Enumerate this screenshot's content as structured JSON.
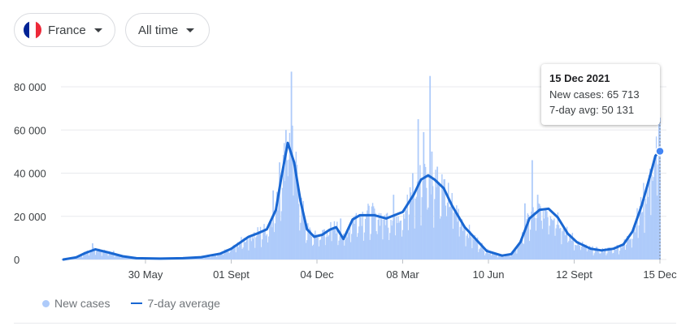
{
  "filters": {
    "country": {
      "label": "France",
      "flag_colors": [
        "#002395",
        "#ffffff",
        "#ed2939"
      ]
    },
    "range": {
      "label": "All time"
    }
  },
  "tooltip": {
    "date": "15 Dec 2021",
    "new_cases": "New cases: 65 713",
    "avg": "7-day avg: 50 131"
  },
  "legend": {
    "bars": "New cases",
    "line": "7-day average"
  },
  "colors": {
    "bar": "#aecbfa",
    "line": "#1967d2",
    "grid": "#e8eaed"
  },
  "chart_data": {
    "type": "bar",
    "title": "",
    "xlabel": "",
    "ylabel": "",
    "x_start": "2020-03-01",
    "x_end": "2021-12-15",
    "ylim": [
      0,
      85000
    ],
    "yticks": [
      {
        "value": 0,
        "label": "0"
      },
      {
        "value": 20000,
        "label": "20 000"
      },
      {
        "value": 40000,
        "label": "40 000"
      },
      {
        "value": 60000,
        "label": "60 000"
      },
      {
        "value": 80000,
        "label": "80 000"
      }
    ],
    "xticks": [
      {
        "date": "2020-05-30",
        "label": "30 May"
      },
      {
        "date": "2020-09-01",
        "label": "01 Sept"
      },
      {
        "date": "2020-12-04",
        "label": "04 Dec"
      },
      {
        "date": "2021-03-08",
        "label": "08 Mar"
      },
      {
        "date": "2021-06-10",
        "label": "10 Jun"
      },
      {
        "date": "2021-09-12",
        "label": "12 Sept"
      },
      {
        "date": "2021-12-15",
        "label": "15 Dec"
      }
    ],
    "series": [
      {
        "name": "7-day average",
        "points": [
          [
            "2020-03-01",
            0
          ],
          [
            "2020-03-15",
            1000
          ],
          [
            "2020-03-25",
            3000
          ],
          [
            "2020-04-05",
            4700
          ],
          [
            "2020-04-20",
            3200
          ],
          [
            "2020-05-05",
            1500
          ],
          [
            "2020-05-20",
            600
          ],
          [
            "2020-06-15",
            400
          ],
          [
            "2020-07-10",
            600
          ],
          [
            "2020-07-30",
            1100
          ],
          [
            "2020-08-20",
            2700
          ],
          [
            "2020-09-01",
            5000
          ],
          [
            "2020-09-20",
            10500
          ],
          [
            "2020-10-01",
            12300
          ],
          [
            "2020-10-10",
            14000
          ],
          [
            "2020-10-20",
            23000
          ],
          [
            "2020-10-26",
            38000
          ],
          [
            "2020-11-02",
            54000
          ],
          [
            "2020-11-09",
            45000
          ],
          [
            "2020-11-16",
            27000
          ],
          [
            "2020-11-23",
            14000
          ],
          [
            "2020-12-01",
            10500
          ],
          [
            "2020-12-10",
            11500
          ],
          [
            "2020-12-18",
            13800
          ],
          [
            "2020-12-25",
            15000
          ],
          [
            "2021-01-02",
            9500
          ],
          [
            "2021-01-12",
            18500
          ],
          [
            "2021-01-20",
            20500
          ],
          [
            "2021-02-05",
            20500
          ],
          [
            "2021-02-18",
            19000
          ],
          [
            "2021-03-08",
            22000
          ],
          [
            "2021-03-20",
            30000
          ],
          [
            "2021-03-28",
            37000
          ],
          [
            "2021-04-05",
            39000
          ],
          [
            "2021-04-12",
            37000
          ],
          [
            "2021-04-22",
            33000
          ],
          [
            "2021-05-01",
            25000
          ],
          [
            "2021-05-15",
            15000
          ],
          [
            "2021-05-28",
            9000
          ],
          [
            "2021-06-08",
            4000
          ],
          [
            "2021-06-25",
            1800
          ],
          [
            "2021-07-05",
            2500
          ],
          [
            "2021-07-15",
            8000
          ],
          [
            "2021-07-25",
            19000
          ],
          [
            "2021-08-05",
            23000
          ],
          [
            "2021-08-15",
            23500
          ],
          [
            "2021-08-25",
            19500
          ],
          [
            "2021-09-05",
            12000
          ],
          [
            "2021-09-15",
            8000
          ],
          [
            "2021-09-30",
            5000
          ],
          [
            "2021-10-12",
            4200
          ],
          [
            "2021-10-25",
            5000
          ],
          [
            "2021-11-05",
            7000
          ],
          [
            "2021-11-15",
            13000
          ],
          [
            "2021-11-25",
            25000
          ],
          [
            "2021-12-05",
            40000
          ],
          [
            "2021-12-10",
            48000
          ],
          [
            "2021-12-15",
            50131
          ]
        ]
      },
      {
        "name": "New cases",
        "spikes": [
          [
            "2020-04-02",
            7500
          ],
          [
            "2020-04-25",
            4000
          ],
          [
            "2020-10-17",
            32000
          ],
          [
            "2020-10-24",
            45000
          ],
          [
            "2020-10-31",
            60000
          ],
          [
            "2020-11-01",
            46000
          ],
          [
            "2020-11-06",
            87000
          ],
          [
            "2020-11-07",
            62000
          ],
          [
            "2020-12-12",
            14000
          ],
          [
            "2020-12-30",
            19000
          ],
          [
            "2021-02-26",
            30000
          ],
          [
            "2021-03-19",
            40000
          ],
          [
            "2021-03-25",
            65000
          ],
          [
            "2021-03-31",
            59000
          ],
          [
            "2021-04-07",
            85000
          ],
          [
            "2021-04-09",
            50000
          ],
          [
            "2021-04-15",
            43000
          ],
          [
            "2021-07-20",
            26000
          ],
          [
            "2021-07-28",
            46000
          ],
          [
            "2021-08-03",
            30000
          ],
          [
            "2021-12-14",
            63000
          ],
          [
            "2021-12-15",
            65713
          ]
        ]
      }
    ],
    "highlight": {
      "date": "2021-12-15",
      "value": 50131
    }
  }
}
